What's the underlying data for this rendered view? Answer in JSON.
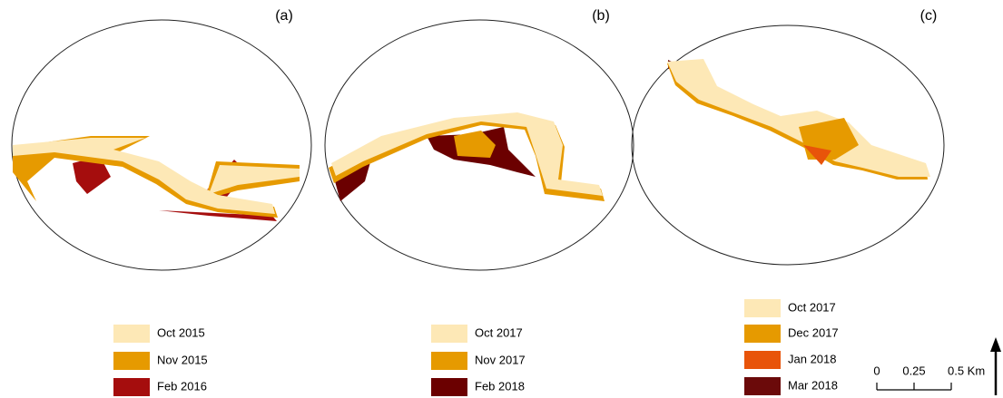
{
  "panels": [
    {
      "label": "(a)",
      "legend": [
        {
          "name": "Oct 2015",
          "color": "#fde8b6"
        },
        {
          "name": "Nov 2015",
          "color": "#e69a00"
        },
        {
          "name": "Feb 2016",
          "color": "#a50d0d"
        }
      ]
    },
    {
      "label": "(b)",
      "legend": [
        {
          "name": "Oct 2017",
          "color": "#fde8b6"
        },
        {
          "name": "Nov 2017",
          "color": "#e69a00"
        },
        {
          "name": "Feb 2018",
          "color": "#6b0000"
        }
      ]
    },
    {
      "label": "(c)",
      "legend": [
        {
          "name": "Oct 2017",
          "color": "#fde8b6"
        },
        {
          "name": "Dec 2017",
          "color": "#e69a00"
        },
        {
          "name": "Jan 2018",
          "color": "#e8540a"
        },
        {
          "name": "Mar 2018",
          "color": "#6b0a0a"
        }
      ]
    }
  ],
  "scale_bar": {
    "labels": [
      "0",
      "0.25",
      "0.5 Km"
    ]
  }
}
